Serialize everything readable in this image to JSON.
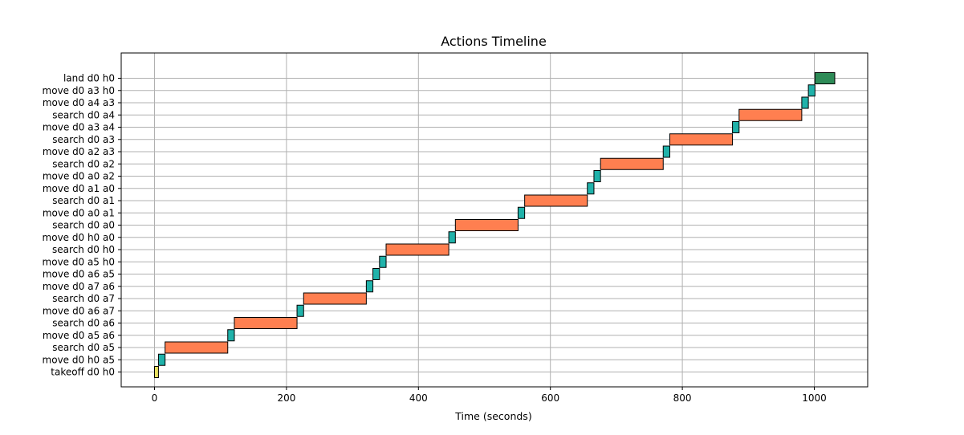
{
  "chart_data": {
    "type": "gantt",
    "title": "Actions Timeline",
    "xlabel": "Time (seconds)",
    "ylabel": "",
    "xlim": [
      -50,
      1082
    ],
    "xticks": [
      0,
      200,
      400,
      600,
      800,
      1000
    ],
    "grid": true,
    "colors": {
      "takeoff": "#e8e060",
      "move": "#20b2aa",
      "search": "#ff7f50",
      "land": "#2e8b57",
      "grid": "#b0b0b0"
    },
    "tasks": [
      {
        "label": "takeoff d0 h0",
        "kind": "takeoff",
        "start": 0,
        "end": 6
      },
      {
        "label": "move d0 h0 a5",
        "kind": "move",
        "start": 6,
        "end": 16
      },
      {
        "label": "search d0 a5",
        "kind": "search",
        "start": 16,
        "end": 111
      },
      {
        "label": "move d0 a5 a6",
        "kind": "move",
        "start": 111,
        "end": 121
      },
      {
        "label": "search d0 a6",
        "kind": "search",
        "start": 121,
        "end": 216
      },
      {
        "label": "move d0 a6 a7",
        "kind": "move",
        "start": 216,
        "end": 226
      },
      {
        "label": "search d0 a7",
        "kind": "search",
        "start": 226,
        "end": 321
      },
      {
        "label": "move d0 a7 a6",
        "kind": "move",
        "start": 321,
        "end": 331
      },
      {
        "label": "move d0 a6 a5",
        "kind": "move",
        "start": 331,
        "end": 341
      },
      {
        "label": "move d0 a5 h0",
        "kind": "move",
        "start": 341,
        "end": 351
      },
      {
        "label": "search d0 h0",
        "kind": "search",
        "start": 351,
        "end": 446
      },
      {
        "label": "move d0 h0 a0",
        "kind": "move",
        "start": 446,
        "end": 456
      },
      {
        "label": "search d0 a0",
        "kind": "search",
        "start": 456,
        "end": 551
      },
      {
        "label": "move d0 a0 a1",
        "kind": "move",
        "start": 551,
        "end": 561
      },
      {
        "label": "search d0 a1",
        "kind": "search",
        "start": 561,
        "end": 656
      },
      {
        "label": "move d0 a1 a0",
        "kind": "move",
        "start": 656,
        "end": 666
      },
      {
        "label": "move d0 a0 a2",
        "kind": "move",
        "start": 666,
        "end": 676
      },
      {
        "label": "search d0 a2",
        "kind": "search",
        "start": 676,
        "end": 771
      },
      {
        "label": "move d0 a2 a3",
        "kind": "move",
        "start": 771,
        "end": 781
      },
      {
        "label": "search d0 a3",
        "kind": "search",
        "start": 781,
        "end": 876
      },
      {
        "label": "move d0 a3 a4",
        "kind": "move",
        "start": 876,
        "end": 886
      },
      {
        "label": "search d0 a4",
        "kind": "search",
        "start": 886,
        "end": 981
      },
      {
        "label": "move d0 a4 a3",
        "kind": "move",
        "start": 981,
        "end": 991
      },
      {
        "label": "move d0 a3 h0",
        "kind": "move",
        "start": 991,
        "end": 1001
      },
      {
        "label": "land d0 h0",
        "kind": "land",
        "start": 1001,
        "end": 1031
      }
    ]
  }
}
